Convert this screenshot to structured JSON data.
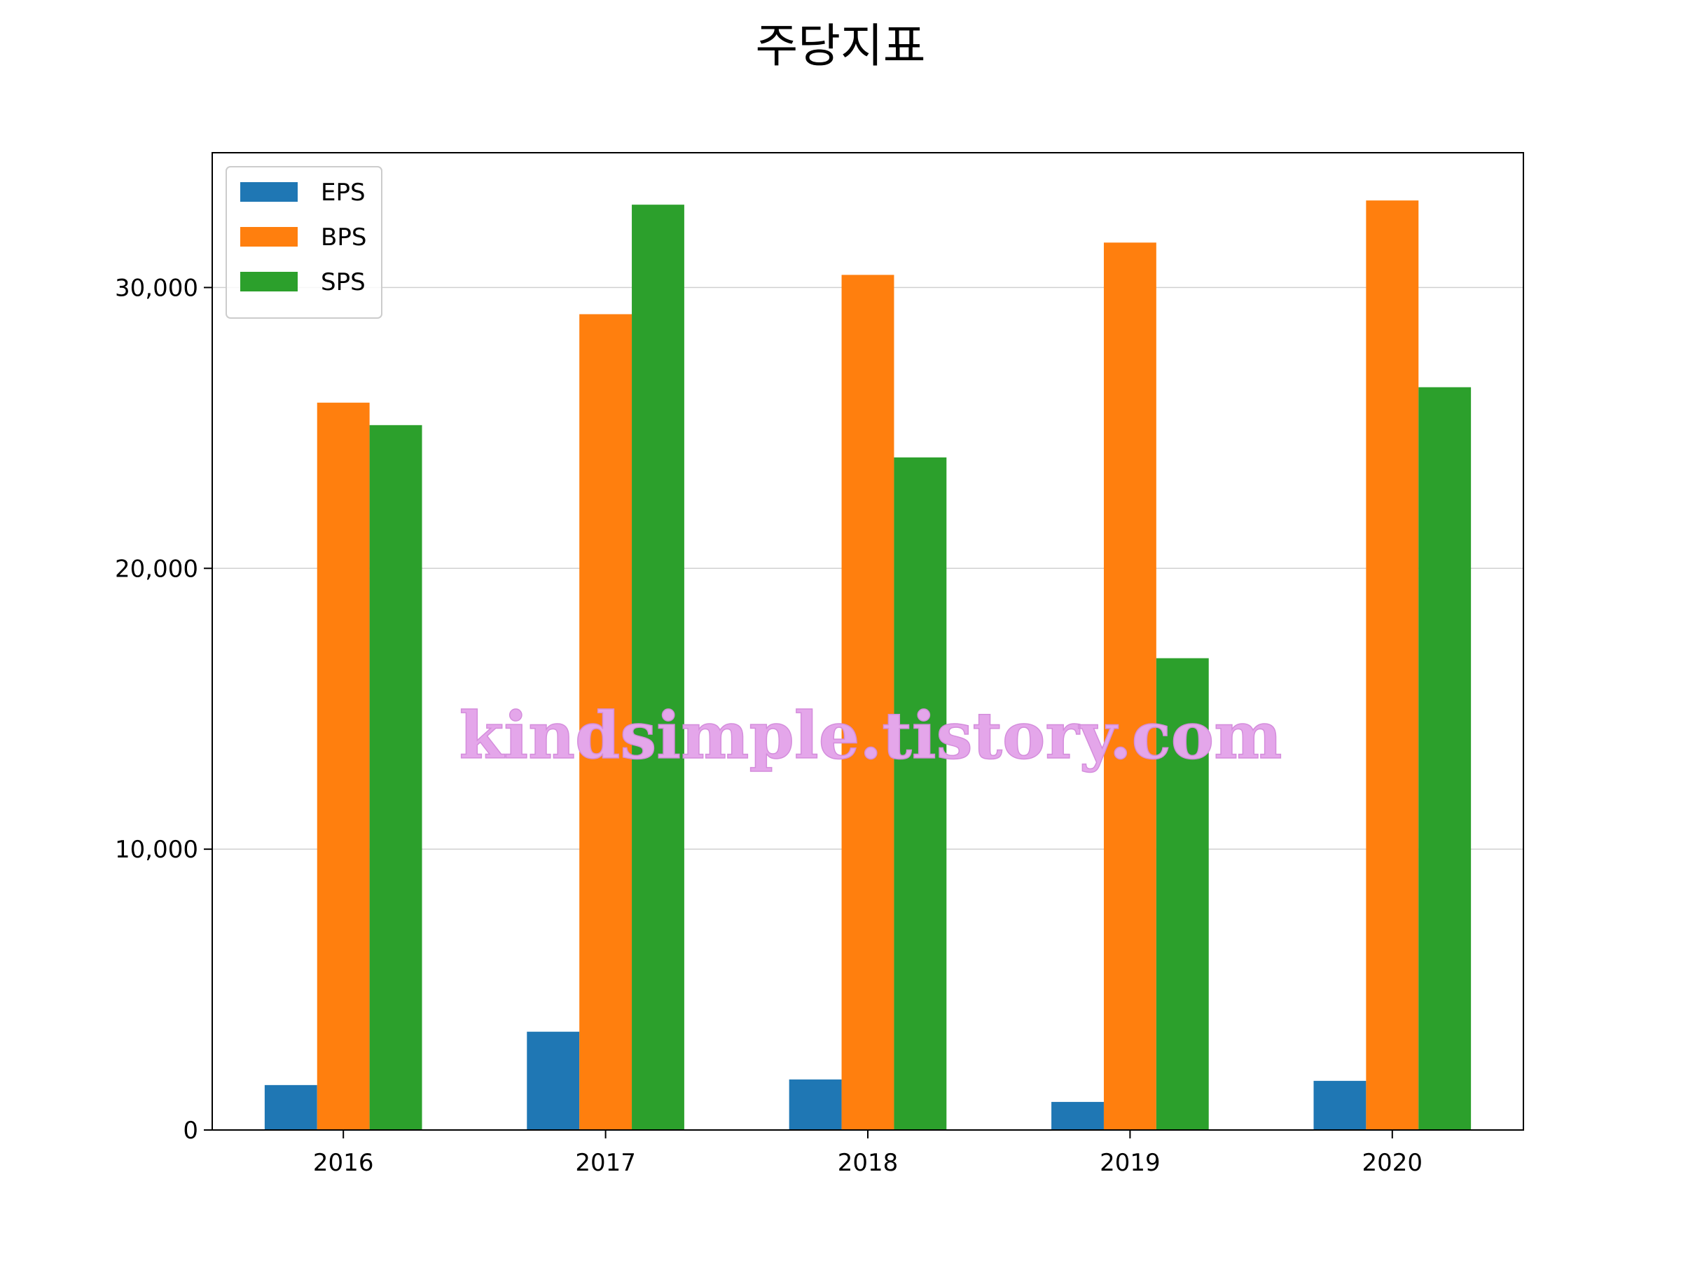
{
  "chart_data": {
    "type": "bar",
    "title": "주당지표",
    "xlabel": "",
    "ylabel": "",
    "categories": [
      "2016",
      "2017",
      "2018",
      "2019",
      "2020"
    ],
    "series": [
      {
        "name": "EPS",
        "color": "#1f77b4",
        "values": [
          1600,
          3500,
          1800,
          1000,
          1750
        ]
      },
      {
        "name": "BPS",
        "color": "#ff7f0e",
        "values": [
          25900,
          29050,
          30450,
          31600,
          33100
        ]
      },
      {
        "name": "SPS",
        "color": "#2ca02c",
        "values": [
          25100,
          32950,
          23950,
          16800,
          26450
        ]
      }
    ],
    "ylim": [
      0,
      34800
    ],
    "yticks": [
      {
        "value": 0,
        "label": "0"
      },
      {
        "value": 10000,
        "label": "10,000"
      },
      {
        "value": 20000,
        "label": "20,000"
      },
      {
        "value": 30000,
        "label": "30,000"
      }
    ],
    "grid": "horizontal",
    "legend": "top-left",
    "watermark": "kindsimple.tistory.com"
  }
}
